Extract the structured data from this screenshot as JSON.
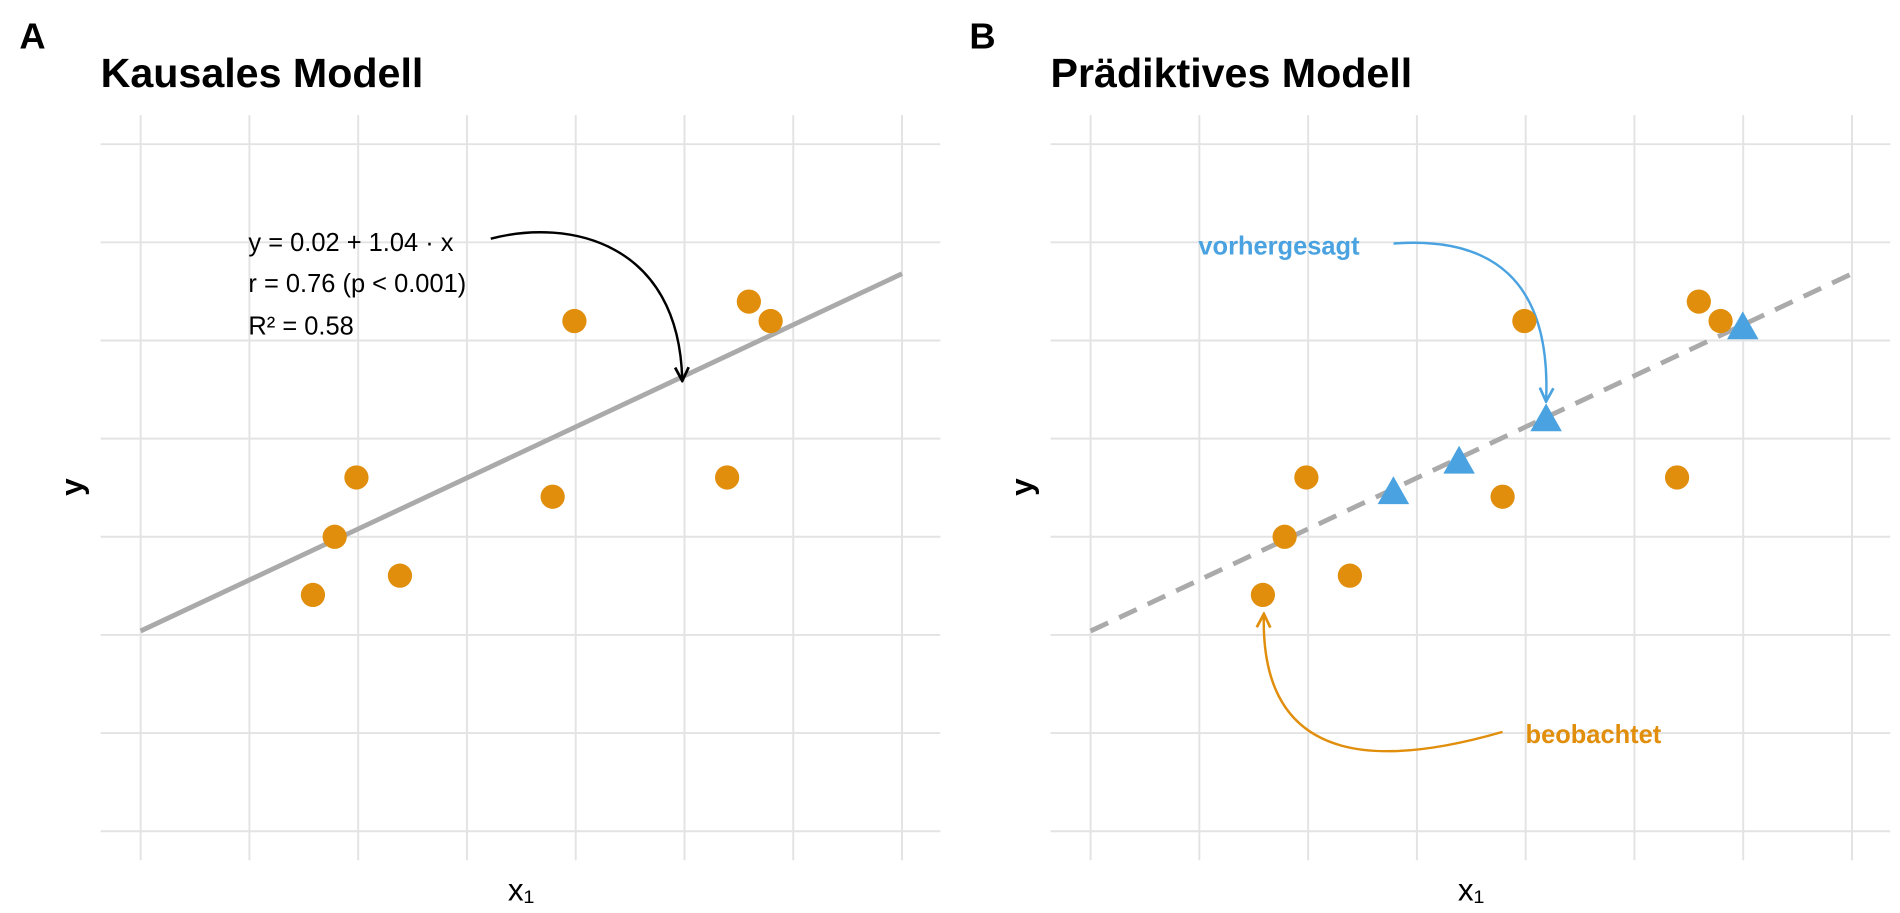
{
  "chart_data": [
    {
      "type": "scatter",
      "panel_label": "A",
      "title": "Kausales Modell",
      "x_label": "x₁",
      "y_label": "y",
      "xlim": [
        -0.092,
        1.838
      ],
      "ylim": [
        -1.148,
        2.648
      ],
      "xticks": [
        0,
        0.25,
        0.5,
        0.75,
        1,
        1.25,
        1.5,
        1.75
      ],
      "yticks": [
        -1,
        -0.5,
        0,
        0.5,
        1,
        1.5,
        2,
        2.5
      ],
      "grid": true,
      "series": [
        {
          "color": "#e08e0b",
          "marker": "circle",
          "x": [
            0.396,
            0.446,
            0.496,
            0.596,
            0.947,
            0.997,
            1.348,
            1.398,
            1.448
          ],
          "values": [
            0.204,
            0.5,
            0.802,
            0.302,
            0.704,
            1.599,
            0.802,
            1.698,
            1.599
          ]
        }
      ],
      "fit": {
        "intercept": 0.02,
        "slope": 1.04,
        "color": "#aaaaaa",
        "linestyle": "solid"
      },
      "annotations": [
        "y = 0.02 + 1.04 · x",
        "r = 0.76  (p < 0.001)",
        "R² = 0.58"
      ]
    },
    {
      "type": "scatter",
      "panel_label": "B",
      "title": "Prädiktives Modell",
      "x_label": "x₁",
      "y_label": "y",
      "xlim": [
        -0.092,
        1.838
      ],
      "ylim": [
        -1.148,
        2.648
      ],
      "xticks": [
        0,
        0.25,
        0.5,
        0.75,
        1,
        1.25,
        1.5,
        1.75
      ],
      "yticks": [
        -1,
        -0.5,
        0,
        0.5,
        1,
        1.5,
        2,
        2.5
      ],
      "grid": true,
      "series": [
        {
          "name": "beobachtet",
          "color": "#e08e0b",
          "marker": "circle",
          "x": [
            0.396,
            0.446,
            0.496,
            0.596,
            0.947,
            0.997,
            1.348,
            1.398,
            1.448
          ],
          "values": [
            0.204,
            0.5,
            0.802,
            0.302,
            0.704,
            1.599,
            0.802,
            1.698,
            1.599
          ]
        },
        {
          "name": "vorhergesagt",
          "color": "#4aa3e0",
          "marker": "triangle",
          "x": [
            0.696,
            0.847,
            1.047,
            1.499
          ],
          "values": [
            0.722,
            0.877,
            1.093,
            1.562
          ]
        }
      ],
      "fit": {
        "intercept": 0.02,
        "slope": 1.04,
        "color": "#aaaaaa",
        "linestyle": "dashed"
      }
    }
  ]
}
